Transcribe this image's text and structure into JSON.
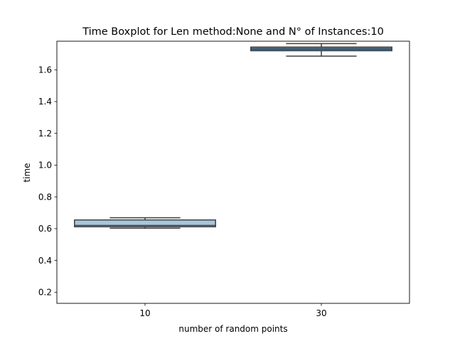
{
  "chart_data": {
    "type": "box",
    "title": "Time Boxplot for Len method:None and N° of Instances:10",
    "xlabel": "number of random points",
    "ylabel": "time",
    "categories": [
      "10",
      "30"
    ],
    "yticks": [
      "0.2",
      "0.4",
      "0.6",
      "0.8",
      "1.0",
      "1.2",
      "1.4",
      "1.6"
    ],
    "ylim": [
      0.13,
      1.78
    ],
    "boxes": [
      {
        "category": "10",
        "whisker_low": 0.603,
        "q1": 0.612,
        "median": 0.62,
        "q3": 0.655,
        "whisker_high": 0.669,
        "color": "#a7c6dc"
      },
      {
        "category": "30",
        "whisker_low": 1.686,
        "q1": 1.72,
        "median": 1.731,
        "q3": 1.743,
        "whisker_high": 1.765,
        "color": "#4a83b0"
      }
    ],
    "grid": false,
    "legend": "none"
  }
}
